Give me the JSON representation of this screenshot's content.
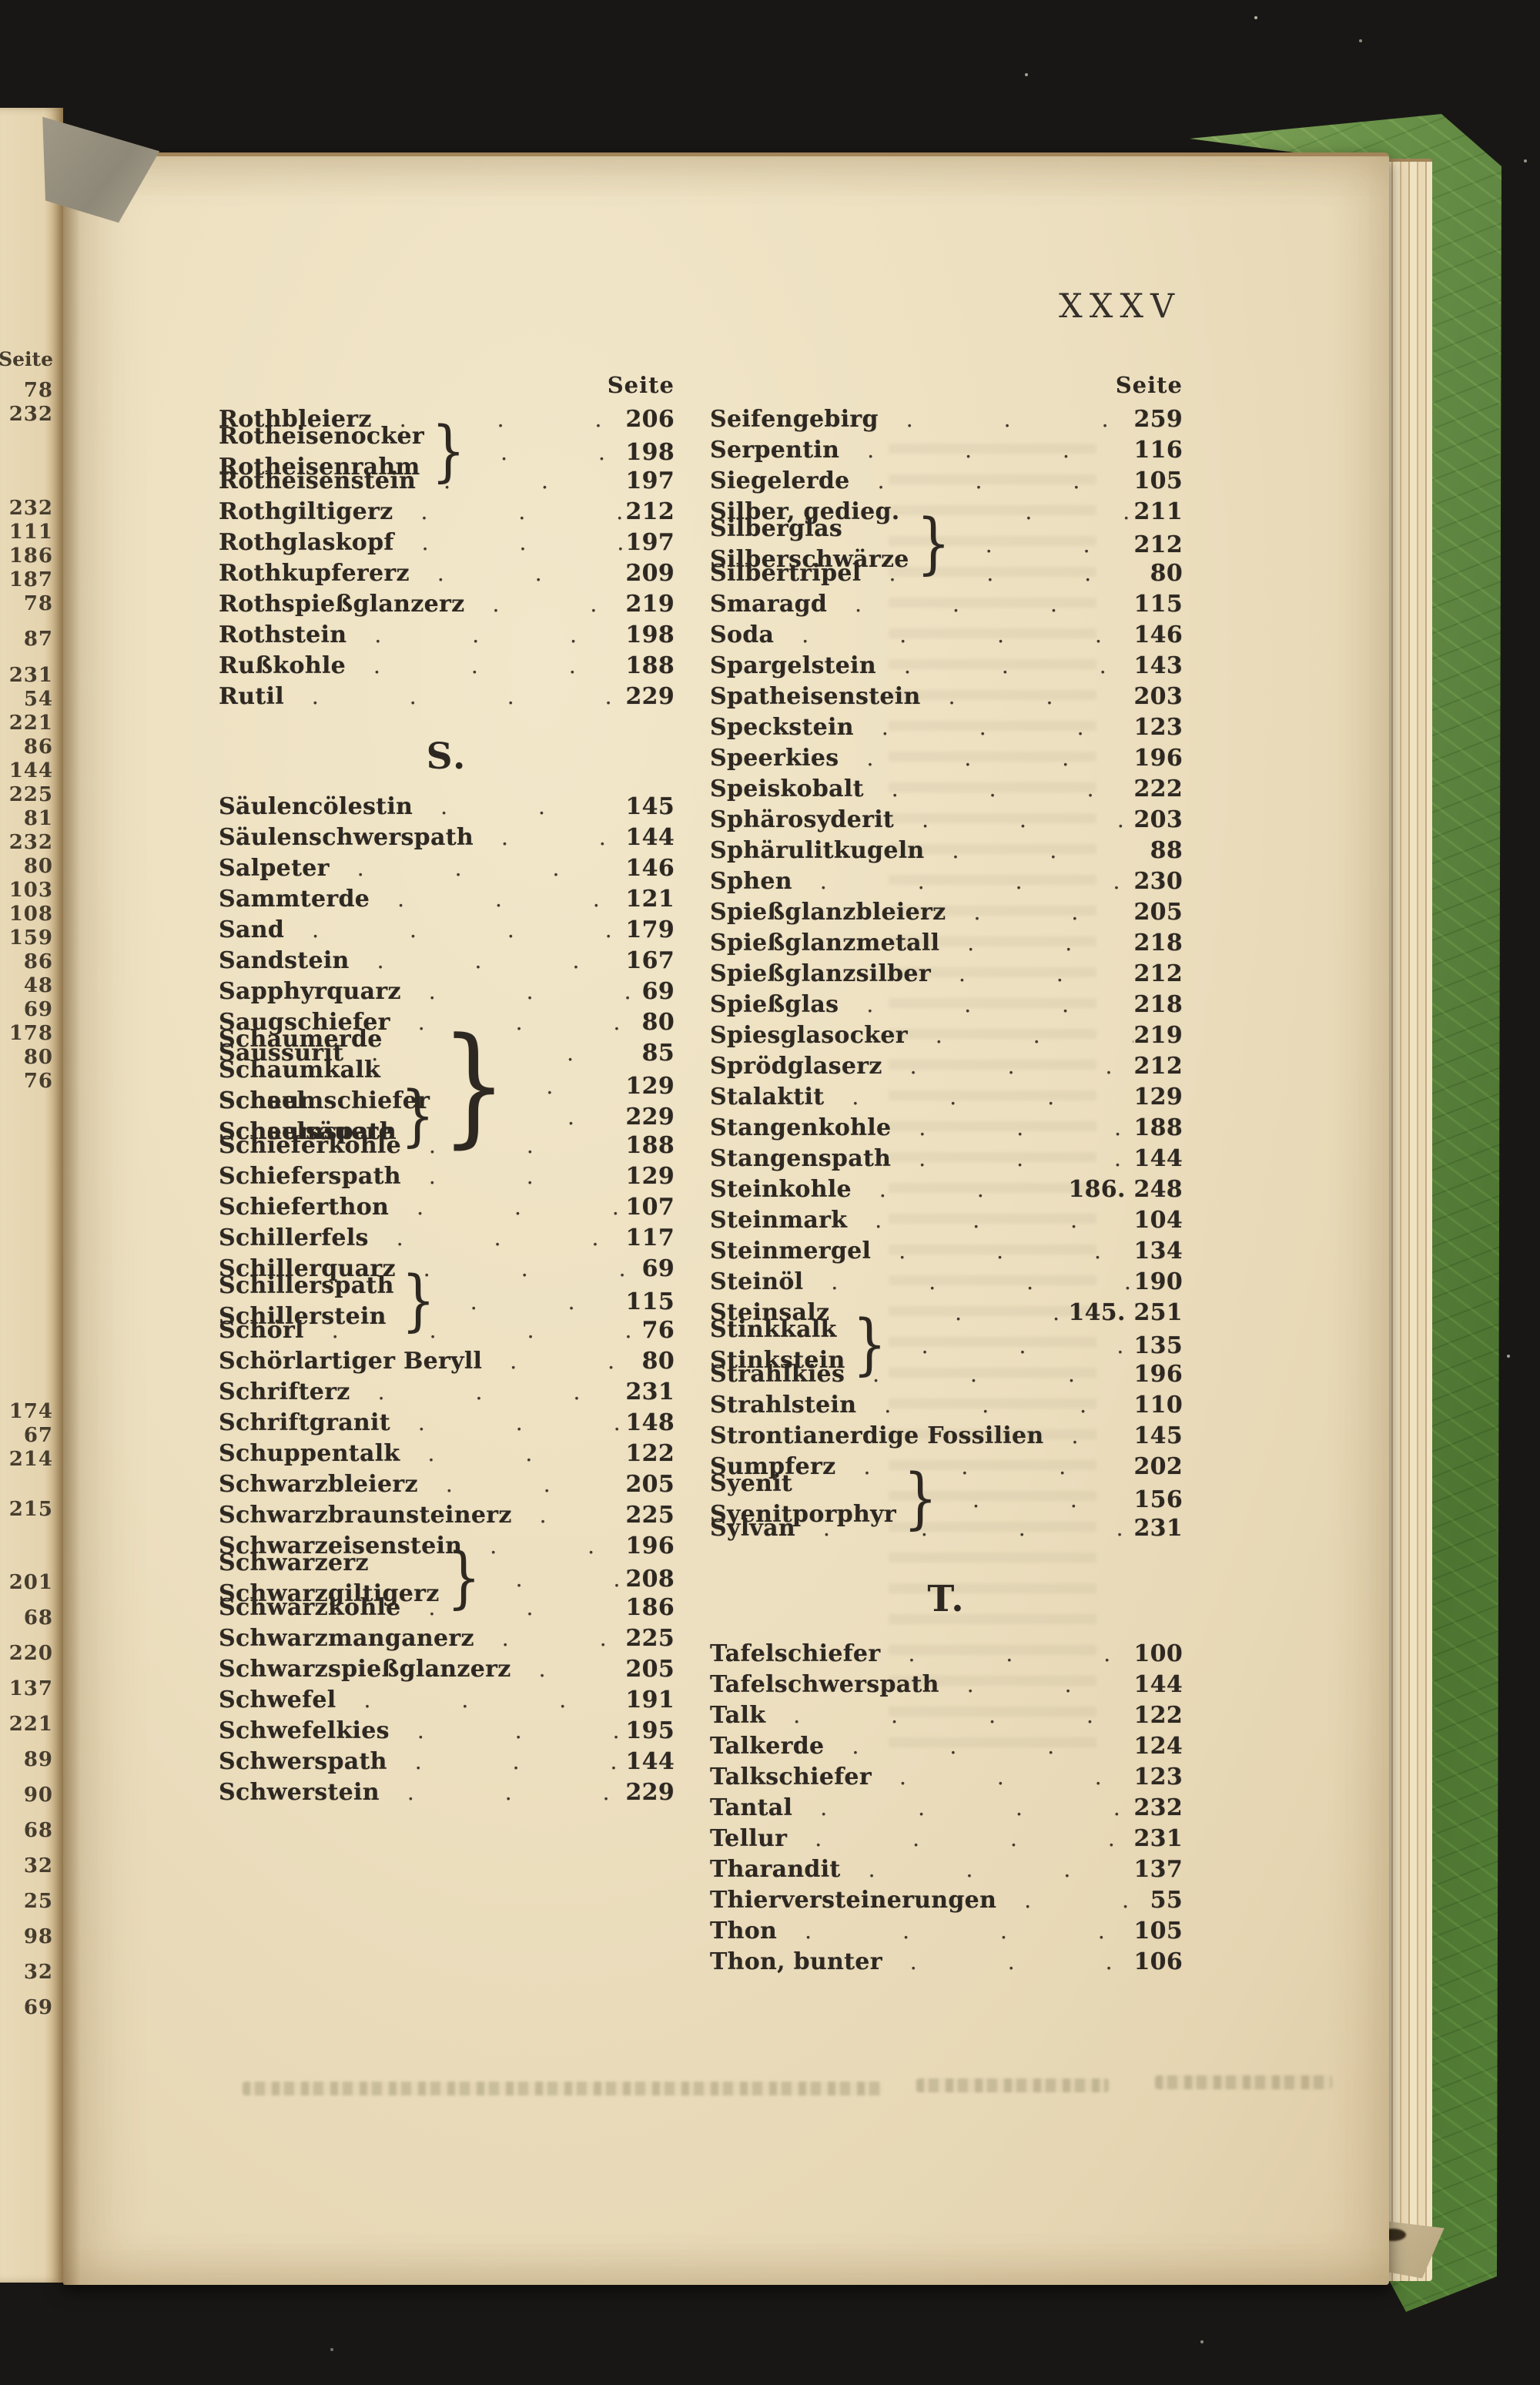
{
  "meta": {
    "leader_dots": "........",
    "ink_color": "#2e2822",
    "paper_color": "#ecdfbf",
    "cover_green": "#5d8440",
    "background_color": "#191715"
  },
  "folio": "XXXV",
  "left_margin": {
    "header": "Seite",
    "groups": [
      [
        "78",
        "232"
      ],
      [
        "232",
        "111",
        "186",
        "187",
        "78"
      ],
      [
        "87"
      ],
      [
        "231",
        "54",
        "221",
        "86",
        "144",
        "225",
        "81",
        "232",
        "80",
        "103",
        "108",
        "159",
        "86",
        "48",
        "69",
        "178",
        "80",
        "76"
      ],
      [
        "174",
        "67",
        "214"
      ],
      [
        "215"
      ],
      [
        "201",
        "68",
        "220",
        "137",
        "221",
        "89",
        "90",
        "68",
        "32",
        "25",
        "98",
        "32",
        "69"
      ]
    ]
  },
  "index": {
    "left_column": {
      "header": "Seite",
      "sections": [
        {
          "heading": "",
          "entries": [
            {
              "term": "Rothbleierz",
              "page": "206"
            },
            {
              "terms": [
                "Rotheisenocker",
                "Rotheisenrahm"
              ],
              "page": "198"
            },
            {
              "term": "Rotheisenstein",
              "page": "197"
            },
            {
              "term": "Rothgiltigerz",
              "page": "212"
            },
            {
              "term": "Rothglaskopf",
              "page": "197"
            },
            {
              "term": "Rothkupfererz",
              "page": "209"
            },
            {
              "term": "Rothspießglanzerz",
              "page": "219"
            },
            {
              "term": "Rothstein",
              "page": "198"
            },
            {
              "term": "Rußkohle",
              "page": "188"
            },
            {
              "term": "Rutil",
              "page": "229"
            }
          ]
        },
        {
          "heading": "S.",
          "entries": [
            {
              "term": "Säulencölestin",
              "page": "145"
            },
            {
              "term": "Säulenschwerspath",
              "page": "144"
            },
            {
              "term": "Salpeter",
              "page": "146"
            },
            {
              "term": "Sammterde",
              "page": "121"
            },
            {
              "term": "Sand",
              "page": "179"
            },
            {
              "term": "Sandstein",
              "page": "167"
            },
            {
              "term": "Sapphyrquarz",
              "page": "69"
            },
            {
              "term": "Saugschiefer",
              "page": "80"
            },
            {
              "term": "Saussurit",
              "page": "85"
            },
            {
              "terms": [
                "Schaumerde",
                "Schaumkalk",
                "Schaumschiefer",
                "Schaumspath"
              ],
              "page": "129"
            },
            {
              "terms": [
                "Scheel",
                "Scheelsäuere"
              ],
              "page": "229"
            },
            {
              "term": "Schieferkohle",
              "page": "188"
            },
            {
              "term": "Schieferspath",
              "page": "129"
            },
            {
              "term": "Schieferthon",
              "page": "107"
            },
            {
              "term": "Schillerfels",
              "page": "117"
            },
            {
              "term": "Schillerquarz",
              "page": "69"
            },
            {
              "terms": [
                "Schillerspath",
                "Schillerstein"
              ],
              "page": "115"
            },
            {
              "term": "Schörl",
              "page": "76"
            },
            {
              "term": "Schörlartiger Beryll",
              "page": "80"
            },
            {
              "term": "Schrifterz",
              "page": "231"
            },
            {
              "term": "Schriftgranit",
              "page": "148"
            },
            {
              "term": "Schuppentalk",
              "page": "122"
            },
            {
              "term": "Schwarzbleierz",
              "page": "205"
            },
            {
              "term": "Schwarzbraunsteinerz",
              "page": "225"
            },
            {
              "term": "Schwarzeisenstein",
              "page": "196"
            },
            {
              "terms": [
                "Schwarzerz",
                "Schwarzgiltigerz"
              ],
              "page": "208"
            },
            {
              "term": "Schwarzkohle",
              "page": "186"
            },
            {
              "term": "Schwarzmanganerz",
              "page": "225"
            },
            {
              "term": "Schwarzspießglanzerz",
              "page": "205"
            },
            {
              "term": "Schwefel",
              "page": "191"
            },
            {
              "term": "Schwefelkies",
              "page": "195"
            },
            {
              "term": "Schwerspath",
              "page": "144"
            },
            {
              "term": "Schwerstein",
              "page": "229"
            }
          ]
        }
      ]
    },
    "right_column": {
      "header": "Seite",
      "sections": [
        {
          "heading": "",
          "entries": [
            {
              "term": "Seifengebirg",
              "page": "259"
            },
            {
              "term": "Serpentin",
              "page": "116"
            },
            {
              "term": "Siegelerde",
              "page": "105"
            },
            {
              "term": "Silber, gedieg.",
              "page": "211"
            },
            {
              "terms": [
                "Silberglas",
                "Silberschwärze"
              ],
              "page": "212"
            },
            {
              "term": "Silbertripel",
              "page": "80"
            },
            {
              "term": "Smaragd",
              "page": "115"
            },
            {
              "term": "Soda",
              "page": "146"
            },
            {
              "term": "Spargelstein",
              "page": "143"
            },
            {
              "term": "Spatheisenstein",
              "page": "203"
            },
            {
              "term": "Speckstein",
              "page": "123"
            },
            {
              "term": "Speerkies",
              "page": "196"
            },
            {
              "term": "Speiskobalt",
              "page": "222"
            },
            {
              "term": "Sphärosyderit",
              "page": "203"
            },
            {
              "term": "Sphärulitkugeln",
              "page": "88"
            },
            {
              "term": "Sphen",
              "page": "230"
            },
            {
              "term": "Spießglanzbleierz",
              "page": "205"
            },
            {
              "term": "Spießglanzmetall",
              "page": "218"
            },
            {
              "term": "Spießglanzsilber",
              "page": "212"
            },
            {
              "term": "Spießglas",
              "page": "218"
            },
            {
              "term": "Spiesglasocker",
              "page": "219"
            },
            {
              "term": "Sprödglaserz",
              "page": "212"
            },
            {
              "term": "Stalaktit",
              "page": "129"
            },
            {
              "term": "Stangenkohle",
              "page": "188"
            },
            {
              "term": "Stangenspath",
              "page": "144"
            },
            {
              "term": "Steinkohle",
              "page": "186. 248"
            },
            {
              "term": "Steinmark",
              "page": "104"
            },
            {
              "term": "Steinmergel",
              "page": "134"
            },
            {
              "term": "Steinöl",
              "page": "190"
            },
            {
              "term": "Steinsalz",
              "page": "145. 251"
            },
            {
              "terms": [
                "Stinkkalk",
                "Stinkstein"
              ],
              "page": "135"
            },
            {
              "term": "Strahlkies",
              "page": "196"
            },
            {
              "term": "Strahlstein",
              "page": "110"
            },
            {
              "term": "Strontianerdige Fossilien",
              "page": "145"
            },
            {
              "term": "Sumpferz",
              "page": "202"
            },
            {
              "terms": [
                "Syenit",
                "Syenitporphyr"
              ],
              "page": "156"
            },
            {
              "term": "Sylvan",
              "page": "231"
            }
          ]
        },
        {
          "heading": "T.",
          "entries": [
            {
              "term": "Tafelschiefer",
              "page": "100"
            },
            {
              "term": "Tafelschwerspath",
              "page": "144"
            },
            {
              "term": "Talk",
              "page": "122"
            },
            {
              "term": "Talkerde",
              "page": "124"
            },
            {
              "term": "Talkschiefer",
              "page": "123"
            },
            {
              "term": "Tantal",
              "page": "232"
            },
            {
              "term": "Tellur",
              "page": "231"
            },
            {
              "term": "Tharandit",
              "page": "137"
            },
            {
              "term": "Thierversteinerungen",
              "page": "55"
            },
            {
              "term": "Thon",
              "page": "105"
            },
            {
              "term": "Thon, bunter",
              "page": "106"
            }
          ]
        }
      ]
    }
  }
}
